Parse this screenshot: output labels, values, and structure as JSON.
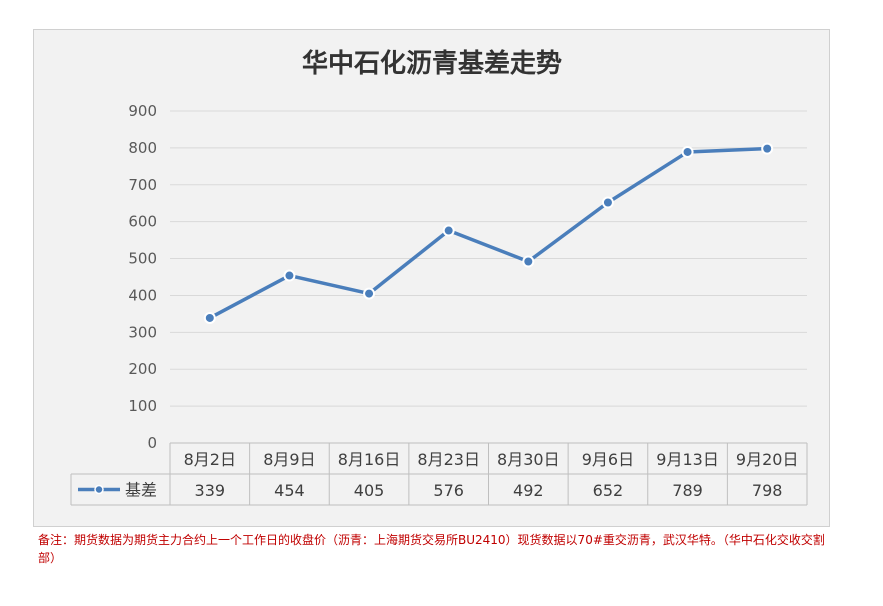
{
  "chart_data": {
    "type": "line",
    "title": "华中石化沥青基差走势",
    "categories": [
      "8月2日",
      "8月9日",
      "8月16日",
      "8月23日",
      "8月30日",
      "9月6日",
      "9月13日",
      "9月20日"
    ],
    "series": [
      {
        "name": "基差",
        "values": [
          339,
          454,
          405,
          576,
          492,
          652,
          789,
          798
        ],
        "color": "#4a7ebb"
      }
    ],
    "yticks": [
      "0",
      "100",
      "200",
      "300",
      "400",
      "500",
      "600",
      "700",
      "800",
      "900"
    ],
    "ylim": [
      0,
      900
    ],
    "grid": true,
    "legend": "data-table",
    "data_table": true
  },
  "footnote": "备注：期货数据为期货主力合约上一个工作日的收盘价（沥青：上海期货交易所BU2410）现货数据以70#重交沥青，武汉华特。（华中石化交收交割部）"
}
